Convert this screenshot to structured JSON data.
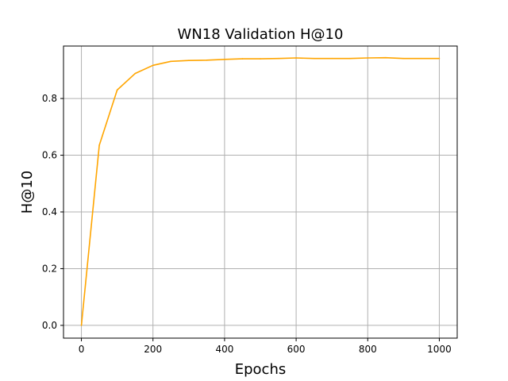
{
  "chart_data": {
    "type": "line",
    "title": "WN18 Validation H@10",
    "xlabel": "Epochs",
    "ylabel": "H@10",
    "xlim": [
      -50,
      1050
    ],
    "ylim": [
      -0.045,
      0.985
    ],
    "xticks": [
      0,
      200,
      400,
      600,
      800,
      1000
    ],
    "xtick_labels": [
      "0",
      "200",
      "400",
      "600",
      "800",
      "1000"
    ],
    "yticks": [
      0.0,
      0.2,
      0.4,
      0.6,
      0.8
    ],
    "ytick_labels": [
      "0.0",
      "0.2",
      "0.4",
      "0.6",
      "0.8"
    ],
    "grid": true,
    "series": [
      {
        "color": "#ffa500",
        "x": [
          0,
          50,
          100,
          150,
          200,
          250,
          300,
          350,
          400,
          450,
          500,
          550,
          600,
          650,
          700,
          750,
          800,
          850,
          900,
          950,
          1000
        ],
        "y": [
          0.0,
          0.635,
          0.83,
          0.888,
          0.917,
          0.931,
          0.934,
          0.935,
          0.938,
          0.94,
          0.94,
          0.941,
          0.943,
          0.941,
          0.941,
          0.941,
          0.943,
          0.944,
          0.941,
          0.941,
          0.941
        ]
      }
    ]
  }
}
